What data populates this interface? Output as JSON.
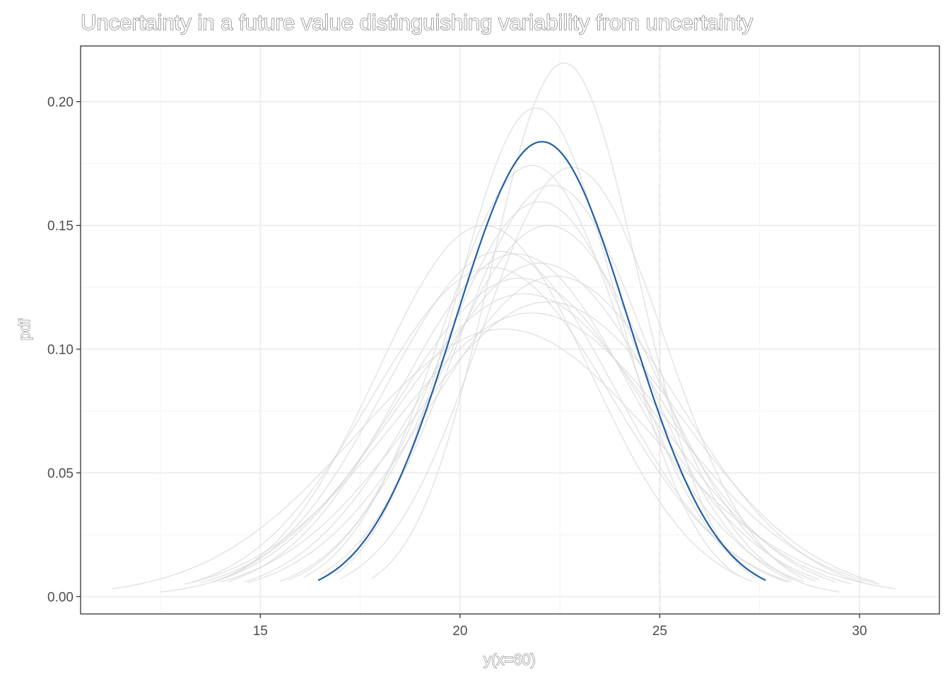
{
  "chart_data": {
    "type": "line",
    "title": "Uncertainty in a future value distinguishing variability from uncertainty",
    "xlabel": "y(x=60)",
    "ylabel": "pdf",
    "xlim": [
      10.5,
      32.0
    ],
    "ylim": [
      -0.007,
      0.2225
    ],
    "x_ticks": [
      15,
      20,
      25,
      30
    ],
    "y_ticks": [
      0.0,
      0.05,
      0.1,
      0.15,
      0.2
    ],
    "x_tick_labels": [
      "15",
      "20",
      "25",
      "30"
    ],
    "y_tick_labels": [
      "0.00",
      "0.05",
      "0.10",
      "0.15",
      "0.20"
    ],
    "grid": true,
    "reference_line": {
      "x": 25,
      "style": "dashed",
      "color": "#e0e0e0"
    },
    "highlight_color": "#1f5fa6",
    "sample_color": "#d9d9d9",
    "main_curve": {
      "mean": 22.05,
      "sd": 2.17,
      "x_range": [
        16.45,
        27.65
      ]
    },
    "sample_curves": [
      {
        "mean": 22.6,
        "sd": 1.85,
        "x_range": [
          17.8,
          27.4
        ]
      },
      {
        "mean": 21.9,
        "sd": 2.02,
        "x_range": [
          16.9,
          27.0
        ]
      },
      {
        "mean": 21.8,
        "sd": 2.29,
        "x_range": [
          16.1,
          27.5
        ]
      },
      {
        "mean": 22.8,
        "sd": 2.3,
        "x_range": [
          17.0,
          28.6
        ]
      },
      {
        "mean": 22.0,
        "sd": 2.5,
        "x_range": [
          15.7,
          28.3
        ]
      },
      {
        "mean": 22.2,
        "sd": 2.66,
        "x_range": [
          15.5,
          28.9
        ]
      },
      {
        "mean": 20.6,
        "sd": 2.66,
        "x_range": [
          13.9,
          27.3
        ]
      },
      {
        "mean": 21.0,
        "sd": 2.86,
        "x_range": [
          13.8,
          28.2
        ]
      },
      {
        "mean": 21.4,
        "sd": 2.88,
        "x_range": [
          14.2,
          28.6
        ]
      },
      {
        "mean": 20.8,
        "sd": 3.0,
        "x_range": [
          13.3,
          28.3
        ]
      },
      {
        "mean": 22.0,
        "sd": 2.96,
        "x_range": [
          14.6,
          29.4
        ]
      },
      {
        "mean": 22.4,
        "sd": 3.08,
        "x_range": [
          14.7,
          30.1
        ]
      },
      {
        "mean": 21.1,
        "sd": 3.69,
        "x_range": [
          11.3,
          30.9
        ]
      },
      {
        "mean": 21.6,
        "sd": 3.26,
        "x_range": [
          13.5,
          29.8
        ]
      },
      {
        "mean": 21.8,
        "sd": 3.48,
        "x_range": [
          13.1,
          30.5
        ]
      },
      {
        "mean": 22.2,
        "sd": 3.35,
        "x_range": [
          14.0,
          30.4
        ]
      },
      {
        "mean": 21.5,
        "sd": 3.1,
        "x_range": [
          12.5,
          29.0
        ]
      },
      {
        "mean": 22.3,
        "sd": 2.4,
        "x_range": [
          16.5,
          29.5
        ]
      }
    ]
  }
}
